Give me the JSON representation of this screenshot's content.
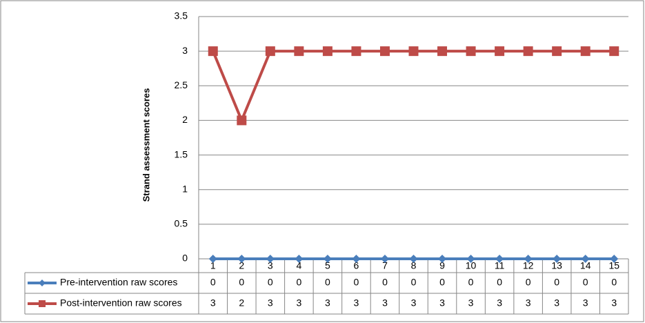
{
  "chart_data": {
    "type": "line",
    "y_label": "Strand assessment scores",
    "categories": [
      "1",
      "2",
      "3",
      "4",
      "5",
      "6",
      "7",
      "8",
      "9",
      "10",
      "11",
      "12",
      "13",
      "14",
      "15"
    ],
    "series": [
      {
        "name": "Pre-intervention raw scores",
        "color": "#4a7ebb",
        "marker": "diamond",
        "values": [
          0,
          0,
          0,
          0,
          0,
          0,
          0,
          0,
          0,
          0,
          0,
          0,
          0,
          0,
          0
        ]
      },
      {
        "name": "Post-intervention raw scores",
        "color": "#be4b48",
        "marker": "square",
        "values": [
          3,
          2,
          3,
          3,
          3,
          3,
          3,
          3,
          3,
          3,
          3,
          3,
          3,
          3,
          3
        ]
      }
    ],
    "ylim": [
      0,
      3.5
    ],
    "yticks": [
      0,
      0.5,
      1,
      1.5,
      2,
      2.5,
      3,
      3.5
    ],
    "grid": true,
    "data_table": true
  }
}
